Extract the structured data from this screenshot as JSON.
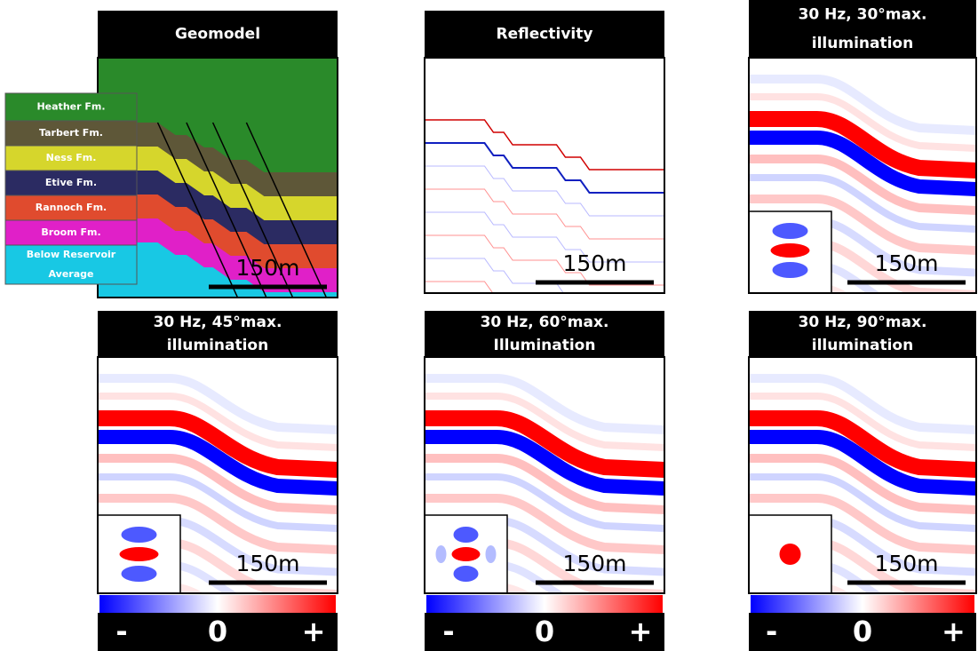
{
  "panels": [
    {
      "title_lines": [
        "Geomodel"
      ],
      "scale_bar": "150m"
    },
    {
      "title_lines": [
        "Reflectivity"
      ],
      "scale_bar": "150m"
    },
    {
      "title_lines": [
        "30 Hz, 30°max.",
        "illumination"
      ],
      "scale_bar": "150m"
    },
    {
      "title_lines": [
        "30 Hz, 45°max.",
        "illumination"
      ],
      "scale_bar": "150m"
    },
    {
      "title_lines": [
        "30 Hz, 60°max.",
        "Illumination"
      ],
      "scale_bar": "150m"
    },
    {
      "title_lines": [
        "30 Hz, 90°max.",
        "illumination"
      ],
      "scale_bar": "150m"
    }
  ],
  "legend": [
    {
      "lines": [
        "Heather Fm."
      ]
    },
    {
      "lines": [
        "Tarbert Fm."
      ]
    },
    {
      "lines": [
        "Ness Fm."
      ]
    },
    {
      "lines": [
        "Etive Fm."
      ]
    },
    {
      "lines": [
        "Rannoch Fm."
      ]
    },
    {
      "lines": [
        "Broom Fm."
      ]
    },
    {
      "lines": [
        "Below Reservoir",
        "Average"
      ]
    }
  ],
  "colorbar": {
    "labels": [
      "-",
      "0",
      "+"
    ]
  }
}
